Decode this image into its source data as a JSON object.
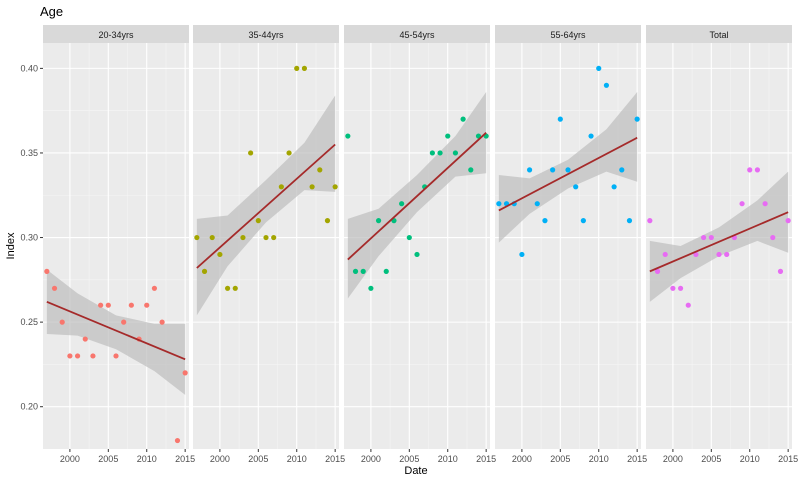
{
  "chart_data": {
    "type": "scatter",
    "title": "Age",
    "xlabel": "Date",
    "ylabel": "Index",
    "xlim": [
      1996.5,
      2015.5
    ],
    "ylim": [
      0.175,
      0.415
    ],
    "x_ticks": [
      2000,
      2005,
      2010,
      2015
    ],
    "y_ticks": [
      0.2,
      0.25,
      0.3,
      0.35,
      0.4
    ],
    "grid": true,
    "legend": "none",
    "trend": "linear fit with confidence band",
    "colors": {
      "panel_bg": "#ebebeb",
      "grid_major": "#ffffff",
      "strip_bg": "#d9d9d9",
      "trend_line": "#a52a2a",
      "band": "#bdbdbd"
    },
    "facets": [
      {
        "label": "20-34yrs",
        "color": "#f8766d",
        "x": [
          1997,
          1998,
          1999,
          2000,
          2001,
          2002,
          2003,
          2004,
          2005,
          2006,
          2007,
          2008,
          2009,
          2010,
          2011,
          2012,
          2014,
          2015
        ],
        "y": [
          0.28,
          0.27,
          0.25,
          0.23,
          0.23,
          0.24,
          0.23,
          0.26,
          0.26,
          0.23,
          0.25,
          0.26,
          0.24,
          0.26,
          0.27,
          0.25,
          0.18,
          0.22
        ],
        "fit": {
          "x": [
            1997,
            2015
          ],
          "y": [
            0.262,
            0.228
          ]
        },
        "band": {
          "x": [
            1997,
            2001,
            2006,
            2011,
            2015
          ],
          "lower": [
            0.243,
            0.242,
            0.234,
            0.221,
            0.207
          ],
          "upper": [
            0.281,
            0.267,
            0.254,
            0.249,
            0.249
          ]
        }
      },
      {
        "label": "35-44yrs",
        "color": "#a3a500",
        "x": [
          1997,
          1998,
          1999,
          2000,
          2001,
          2002,
          2003,
          2004,
          2005,
          2006,
          2007,
          2008,
          2009,
          2010,
          2011,
          2012,
          2013,
          2014,
          2015
        ],
        "y": [
          0.3,
          0.28,
          0.3,
          0.29,
          0.27,
          0.27,
          0.3,
          0.35,
          0.31,
          0.3,
          0.3,
          0.33,
          0.35,
          0.4,
          0.4,
          0.33,
          0.34,
          0.31,
          0.33
        ],
        "fit": {
          "x": [
            1997,
            2015
          ],
          "y": [
            0.282,
            0.355
          ]
        },
        "band": {
          "x": [
            1997,
            2001,
            2006,
            2011,
            2015
          ],
          "lower": [
            0.254,
            0.283,
            0.309,
            0.328,
            0.327
          ],
          "upper": [
            0.311,
            0.313,
            0.334,
            0.356,
            0.384
          ]
        }
      },
      {
        "label": "45-54yrs",
        "color": "#00bf7d",
        "x": [
          1997,
          1998,
          1999,
          2000,
          2001,
          2002,
          2003,
          2004,
          2005,
          2006,
          2007,
          2008,
          2009,
          2010,
          2011,
          2012,
          2013,
          2014,
          2015
        ],
        "y": [
          0.36,
          0.28,
          0.28,
          0.27,
          0.31,
          0.28,
          0.31,
          0.32,
          0.3,
          0.29,
          0.33,
          0.35,
          0.35,
          0.36,
          0.35,
          0.37,
          0.34,
          0.36,
          0.36
        ],
        "fit": {
          "x": [
            1997,
            2015
          ],
          "y": [
            0.287,
            0.362
          ]
        },
        "band": {
          "x": [
            1997,
            2001,
            2006,
            2011,
            2015
          ],
          "lower": [
            0.264,
            0.289,
            0.315,
            0.336,
            0.338
          ],
          "upper": [
            0.311,
            0.317,
            0.337,
            0.36,
            0.386
          ]
        }
      },
      {
        "label": "55-64yrs",
        "color": "#00b0f6",
        "x": [
          1997,
          1998,
          1999,
          2000,
          2001,
          2002,
          2003,
          2004,
          2005,
          2006,
          2007,
          2008,
          2009,
          2010,
          2011,
          2012,
          2013,
          2014,
          2015
        ],
        "y": [
          0.32,
          0.32,
          0.32,
          0.29,
          0.34,
          0.32,
          0.31,
          0.34,
          0.37,
          0.34,
          0.33,
          0.31,
          0.36,
          0.4,
          0.39,
          0.33,
          0.34,
          0.31,
          0.37
        ],
        "fit": {
          "x": [
            1997,
            2015
          ],
          "y": [
            0.316,
            0.359
          ]
        },
        "band": {
          "x": [
            1997,
            2001,
            2006,
            2011,
            2015
          ],
          "lower": [
            0.297,
            0.314,
            0.329,
            0.339,
            0.333
          ],
          "upper": [
            0.337,
            0.335,
            0.346,
            0.364,
            0.386
          ]
        }
      },
      {
        "label": "Total",
        "color": "#e76bf3",
        "x": [
          1997,
          1998,
          1999,
          2000,
          2001,
          2002,
          2003,
          2004,
          2005,
          2006,
          2007,
          2008,
          2009,
          2010,
          2011,
          2012,
          2013,
          2014,
          2015
        ],
        "y": [
          0.31,
          0.28,
          0.29,
          0.27,
          0.27,
          0.26,
          0.29,
          0.3,
          0.3,
          0.29,
          0.29,
          0.3,
          0.32,
          0.34,
          0.34,
          0.32,
          0.3,
          0.28,
          0.31
        ],
        "fit": {
          "x": [
            1997,
            2015
          ],
          "y": [
            0.28,
            0.315
          ]
        },
        "band": {
          "x": [
            1997,
            2001,
            2006,
            2011,
            2015
          ],
          "lower": [
            0.262,
            0.276,
            0.289,
            0.298,
            0.291
          ],
          "upper": [
            0.298,
            0.295,
            0.306,
            0.322,
            0.339
          ]
        }
      }
    ]
  }
}
